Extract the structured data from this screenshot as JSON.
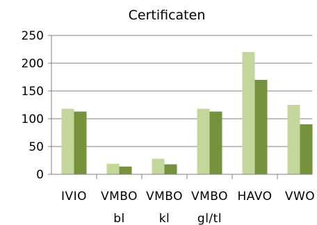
{
  "chart_data": {
    "type": "bar",
    "title": "Certificaten",
    "xlabel": "",
    "ylabel": "",
    "categories": [
      [
        "IVIO"
      ],
      [
        "VMBO",
        "bl"
      ],
      [
        "VMBO",
        "kl"
      ],
      [
        "VMBO",
        "gl/tl"
      ],
      [
        "HAVO"
      ],
      [
        "VWO"
      ]
    ],
    "series": [
      {
        "color": "#c4d79b",
        "values": [
          118,
          19,
          28,
          118,
          220,
          125
        ]
      },
      {
        "color": "#76933c",
        "values": [
          113,
          14,
          18,
          113,
          170,
          90
        ]
      }
    ],
    "ylim": [
      0,
      250
    ],
    "yticks": [
      0,
      50,
      100,
      150,
      200,
      250
    ],
    "grid": true,
    "legend": "none",
    "colors": {
      "grid": "#808080",
      "axis": "#808080",
      "text": "#000000"
    }
  }
}
